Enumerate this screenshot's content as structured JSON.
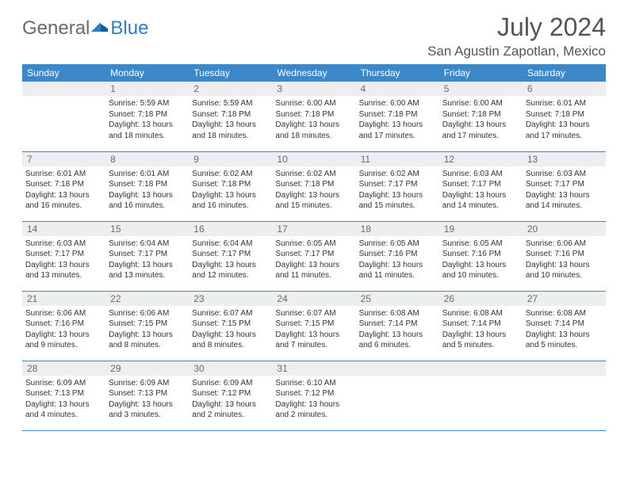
{
  "brand": {
    "general": "General",
    "blue": "Blue"
  },
  "title": "July 2024",
  "location": "San Agustin Zapotlan, Mexico",
  "colors": {
    "header_bg": "#3b87c8",
    "header_text": "#ffffff",
    "daynum_bg": "#eceeef",
    "daynum_text": "#6a6a6a",
    "body_text": "#333333",
    "rule": "#3b87c8",
    "brand_gray": "#6a6a6a",
    "brand_blue": "#2f7dc0"
  },
  "typography": {
    "title_fontsize": 32,
    "location_fontsize": 17,
    "dow_fontsize": 12,
    "daynum_fontsize": 12,
    "cell_fontsize": 10
  },
  "dow": [
    "Sunday",
    "Monday",
    "Tuesday",
    "Wednesday",
    "Thursday",
    "Friday",
    "Saturday"
  ],
  "weeks": [
    [
      null,
      {
        "n": "1",
        "sr": "5:59 AM",
        "ss": "7:18 PM",
        "dl": "13 hours and 18 minutes."
      },
      {
        "n": "2",
        "sr": "5:59 AM",
        "ss": "7:18 PM",
        "dl": "13 hours and 18 minutes."
      },
      {
        "n": "3",
        "sr": "6:00 AM",
        "ss": "7:18 PM",
        "dl": "13 hours and 18 minutes."
      },
      {
        "n": "4",
        "sr": "6:00 AM",
        "ss": "7:18 PM",
        "dl": "13 hours and 17 minutes."
      },
      {
        "n": "5",
        "sr": "6:00 AM",
        "ss": "7:18 PM",
        "dl": "13 hours and 17 minutes."
      },
      {
        "n": "6",
        "sr": "6:01 AM",
        "ss": "7:18 PM",
        "dl": "13 hours and 17 minutes."
      }
    ],
    [
      {
        "n": "7",
        "sr": "6:01 AM",
        "ss": "7:18 PM",
        "dl": "13 hours and 16 minutes."
      },
      {
        "n": "8",
        "sr": "6:01 AM",
        "ss": "7:18 PM",
        "dl": "13 hours and 16 minutes."
      },
      {
        "n": "9",
        "sr": "6:02 AM",
        "ss": "7:18 PM",
        "dl": "13 hours and 16 minutes."
      },
      {
        "n": "10",
        "sr": "6:02 AM",
        "ss": "7:18 PM",
        "dl": "13 hours and 15 minutes."
      },
      {
        "n": "11",
        "sr": "6:02 AM",
        "ss": "7:17 PM",
        "dl": "13 hours and 15 minutes."
      },
      {
        "n": "12",
        "sr": "6:03 AM",
        "ss": "7:17 PM",
        "dl": "13 hours and 14 minutes."
      },
      {
        "n": "13",
        "sr": "6:03 AM",
        "ss": "7:17 PM",
        "dl": "13 hours and 14 minutes."
      }
    ],
    [
      {
        "n": "14",
        "sr": "6:03 AM",
        "ss": "7:17 PM",
        "dl": "13 hours and 13 minutes."
      },
      {
        "n": "15",
        "sr": "6:04 AM",
        "ss": "7:17 PM",
        "dl": "13 hours and 13 minutes."
      },
      {
        "n": "16",
        "sr": "6:04 AM",
        "ss": "7:17 PM",
        "dl": "13 hours and 12 minutes."
      },
      {
        "n": "17",
        "sr": "6:05 AM",
        "ss": "7:17 PM",
        "dl": "13 hours and 11 minutes."
      },
      {
        "n": "18",
        "sr": "6:05 AM",
        "ss": "7:16 PM",
        "dl": "13 hours and 11 minutes."
      },
      {
        "n": "19",
        "sr": "6:05 AM",
        "ss": "7:16 PM",
        "dl": "13 hours and 10 minutes."
      },
      {
        "n": "20",
        "sr": "6:06 AM",
        "ss": "7:16 PM",
        "dl": "13 hours and 10 minutes."
      }
    ],
    [
      {
        "n": "21",
        "sr": "6:06 AM",
        "ss": "7:16 PM",
        "dl": "13 hours and 9 minutes."
      },
      {
        "n": "22",
        "sr": "6:06 AM",
        "ss": "7:15 PM",
        "dl": "13 hours and 8 minutes."
      },
      {
        "n": "23",
        "sr": "6:07 AM",
        "ss": "7:15 PM",
        "dl": "13 hours and 8 minutes."
      },
      {
        "n": "24",
        "sr": "6:07 AM",
        "ss": "7:15 PM",
        "dl": "13 hours and 7 minutes."
      },
      {
        "n": "25",
        "sr": "6:08 AM",
        "ss": "7:14 PM",
        "dl": "13 hours and 6 minutes."
      },
      {
        "n": "26",
        "sr": "6:08 AM",
        "ss": "7:14 PM",
        "dl": "13 hours and 5 minutes."
      },
      {
        "n": "27",
        "sr": "6:08 AM",
        "ss": "7:14 PM",
        "dl": "13 hours and 5 minutes."
      }
    ],
    [
      {
        "n": "28",
        "sr": "6:09 AM",
        "ss": "7:13 PM",
        "dl": "13 hours and 4 minutes."
      },
      {
        "n": "29",
        "sr": "6:09 AM",
        "ss": "7:13 PM",
        "dl": "13 hours and 3 minutes."
      },
      {
        "n": "30",
        "sr": "6:09 AM",
        "ss": "7:12 PM",
        "dl": "13 hours and 2 minutes."
      },
      {
        "n": "31",
        "sr": "6:10 AM",
        "ss": "7:12 PM",
        "dl": "13 hours and 2 minutes."
      },
      null,
      null,
      null
    ]
  ],
  "labels": {
    "sunrise": "Sunrise:",
    "sunset": "Sunset:",
    "daylight": "Daylight:"
  }
}
